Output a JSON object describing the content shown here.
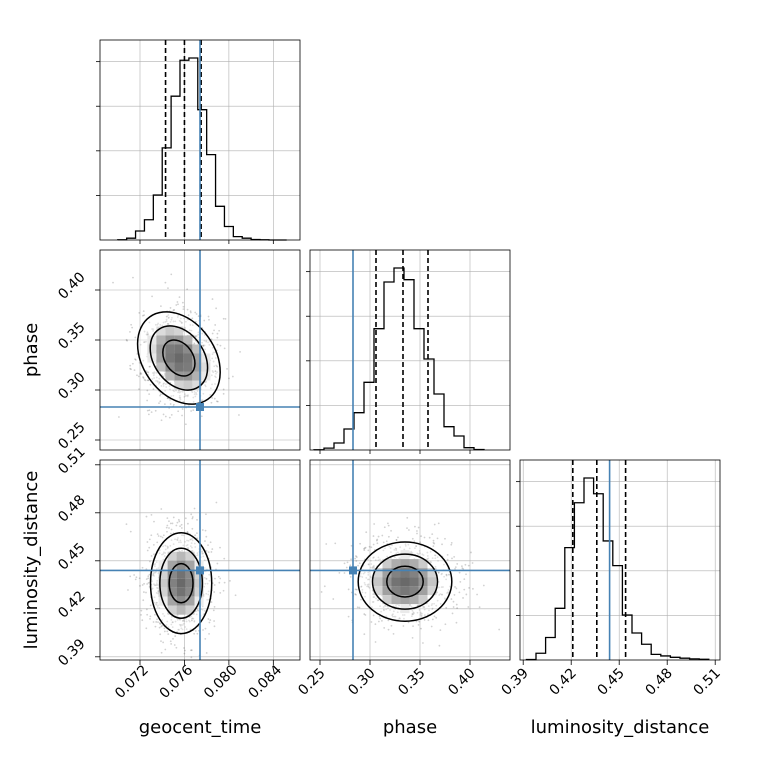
{
  "chart_data": {
    "type": "corner",
    "parameters": [
      {
        "name": "geocent_time",
        "xlabel": "geocent_time",
        "range": [
          0.0684,
          0.0864
        ],
        "ticks": [
          "0.072",
          "0.076",
          "0.080",
          "0.084"
        ],
        "tick_values": [
          0.072,
          0.076,
          0.08,
          0.084
        ],
        "truth": 0.0774,
        "quantiles": [
          0.0743,
          0.076,
          0.0775
        ],
        "histogram": {
          "bin_edges": [
            0.07,
            0.0708,
            0.0716,
            0.0724,
            0.0732,
            0.074,
            0.0748,
            0.0756,
            0.0764,
            0.0772,
            0.078,
            0.0788,
            0.0796,
            0.0804,
            0.0812,
            0.082,
            0.0828,
            0.0836,
            0.0844,
            0.0852
          ],
          "counts": [
            1,
            8,
            40,
            90,
            200,
            410,
            640,
            800,
            810,
            580,
            380,
            150,
            60,
            15,
            8,
            2,
            1,
            0,
            0
          ]
        }
      },
      {
        "name": "phase",
        "xlabel": "phase",
        "ylabel": "phase",
        "range": [
          0.24,
          0.44
        ],
        "ticks": [
          "0.25",
          "0.30",
          "0.35",
          "0.40"
        ],
        "tick_values": [
          0.25,
          0.3,
          0.35,
          0.4
        ],
        "truth": 0.283,
        "quantiles": [
          0.306,
          0.333,
          0.358
        ],
        "histogram": {
          "bin_edges": [
            0.244,
            0.254,
            0.264,
            0.274,
            0.284,
            0.294,
            0.304,
            0.314,
            0.324,
            0.334,
            0.344,
            0.354,
            0.364,
            0.374,
            0.384,
            0.394,
            0.404,
            0.414
          ],
          "counts": [
            1,
            8,
            30,
            90,
            160,
            290,
            520,
            720,
            780,
            730,
            520,
            390,
            240,
            100,
            60,
            10,
            2
          ]
        }
      },
      {
        "name": "luminosity_distance",
        "xlabel": "luminosity_distance",
        "ylabel": "luminosity_distance",
        "range": [
          0.388,
          0.513
        ],
        "ticks": [
          "0.39",
          "0.42",
          "0.45",
          "0.48",
          "0.51"
        ],
        "tick_values": [
          0.39,
          0.42,
          0.45,
          0.48,
          0.51
        ],
        "truth": 0.444,
        "quantiles": [
          0.421,
          0.436,
          0.454
        ],
        "histogram": {
          "bin_edges": [
            0.392,
            0.398,
            0.404,
            0.41,
            0.416,
            0.422,
            0.428,
            0.434,
            0.44,
            0.446,
            0.452,
            0.458,
            0.464,
            0.47,
            0.476,
            0.482,
            0.488,
            0.494,
            0.5,
            0.506
          ],
          "counts": [
            2,
            30,
            100,
            230,
            500,
            700,
            810,
            740,
            530,
            420,
            200,
            120,
            70,
            25,
            18,
            12,
            8,
            5,
            3
          ]
        }
      }
    ],
    "pairs": [
      {
        "x": "geocent_time",
        "y": "phase",
        "density_center": [
          0.0755,
          0.332
        ],
        "contour_levels": 3,
        "truth": [
          0.0774,
          0.283
        ]
      },
      {
        "x": "geocent_time",
        "y": "luminosity_distance",
        "density_center": [
          0.0757,
          0.436
        ],
        "contour_levels": 3,
        "truth": [
          0.0774,
          0.444
        ]
      },
      {
        "x": "phase",
        "y": "luminosity_distance",
        "density_center": [
          0.335,
          0.437
        ],
        "contour_levels": 3,
        "truth": [
          0.283,
          0.444
        ]
      }
    ],
    "colors": {
      "truth": "#4682b4",
      "histogram": "#000000",
      "grid": "#b0b0b0",
      "points": "#000000"
    },
    "grid": true
  }
}
